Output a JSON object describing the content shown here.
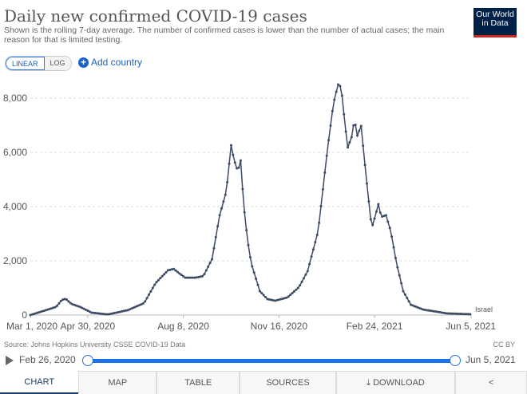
{
  "header": {
    "title": "Daily new confirmed COVID-19 cases",
    "subtitle": "Shown is the rolling 7-day average. The number of confirmed cases is lower than the number of actual cases; the main reason for that is limited testing.",
    "logo": "Our World in Data"
  },
  "controls": {
    "linear": "LINEAR",
    "log": "LOG",
    "add_country": "Add country"
  },
  "chart_data": {
    "type": "line",
    "title": "Daily new confirmed COVID-19 cases",
    "xlabel": "",
    "ylabel": "",
    "ylim": [
      0,
      8600
    ],
    "yticks": [
      0,
      2000,
      4000,
      6000,
      8000
    ],
    "ytick_labels": [
      "0",
      "2,000",
      "4,000",
      "6,000",
      "8,000"
    ],
    "xtick_days": [
      0,
      60,
      160,
      260,
      360,
      461
    ],
    "xtick_labels": [
      "Mar 1, 2020",
      "Apr 30, 2020",
      "Aug 8, 2020",
      "Nov 16, 2020",
      "Feb 24, 2021",
      "Jun 5, 2021"
    ],
    "series": [
      {
        "name": "Israel",
        "color": "#3c4a63",
        "days": [
          0,
          27,
          33,
          37,
          43,
          52,
          64,
          81,
          102,
          119,
          131,
          144,
          150,
          156,
          162,
          173,
          181,
          190,
          198,
          205,
          210,
          213,
          217,
          220,
          223,
          227,
          231,
          240,
          248,
          256,
          269,
          281,
          290,
          301,
          311,
          317,
          321,
          323,
          326,
          329,
          332,
          336,
          339,
          342,
          346,
          349,
          352,
          357,
          361,
          364,
          367,
          372,
          377,
          383,
          390,
          398,
          411,
          436,
          461
        ],
        "values": [
          0,
          300,
          560,
          600,
          410,
          300,
          90,
          20,
          180,
          440,
          1180,
          1650,
          1700,
          1530,
          1380,
          1380,
          1440,
          2060,
          3680,
          4560,
          6260,
          5730,
          5300,
          5700,
          4120,
          2800,
          1910,
          880,
          590,
          530,
          650,
          1030,
          1620,
          3090,
          6180,
          7790,
          8380,
          8620,
          8090,
          7060,
          6180,
          6560,
          7210,
          6620,
          6970,
          5880,
          4850,
          3200,
          3680,
          4090,
          3620,
          3680,
          3090,
          1910,
          880,
          380,
          200,
          60,
          30
        ]
      }
    ]
  },
  "footer": {
    "source": "Source: Johns Hopkins University CSSE COVID-19 Data",
    "license": "CC BY",
    "start_date": "Feb 26, 2020",
    "end_date": "Jun 5, 2021"
  },
  "tabs": [
    "CHART",
    "MAP",
    "TABLE",
    "SOURCES",
    "DOWNLOAD"
  ]
}
